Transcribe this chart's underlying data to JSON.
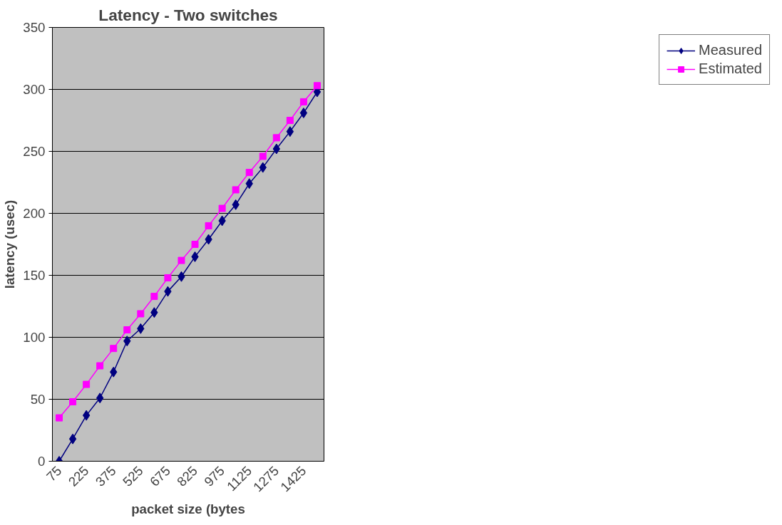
{
  "chart_data": {
    "type": "line",
    "title": "Latency - Two switches",
    "xlabel": "packet size (bytes",
    "ylabel": "latency (usec)",
    "categories": [
      "75",
      null,
      "225",
      null,
      "375",
      null,
      "525",
      null,
      "675",
      null,
      "825",
      null,
      "975",
      null,
      "1125",
      null,
      "1275",
      null,
      "1425",
      null
    ],
    "series": [
      {
        "name": "Measured",
        "color": "#000080",
        "marker": "diamond",
        "values": [
          0,
          18,
          37,
          51,
          72,
          97,
          107,
          120,
          137,
          149,
          165,
          179,
          194,
          207,
          224,
          237,
          252,
          266,
          281,
          298
        ]
      },
      {
        "name": "Estimated",
        "color": "#ff00ff",
        "marker": "square",
        "values": [
          35,
          48,
          62,
          77,
          91,
          106,
          119,
          133,
          148,
          162,
          175,
          190,
          204,
          219,
          233,
          246,
          261,
          275,
          290,
          303
        ]
      }
    ],
    "ylim": [
      0,
      350
    ],
    "yticks": [
      0,
      50,
      100,
      150,
      200,
      250,
      300,
      350
    ],
    "grid": "y",
    "legend": "right",
    "line_style": "solid"
  }
}
